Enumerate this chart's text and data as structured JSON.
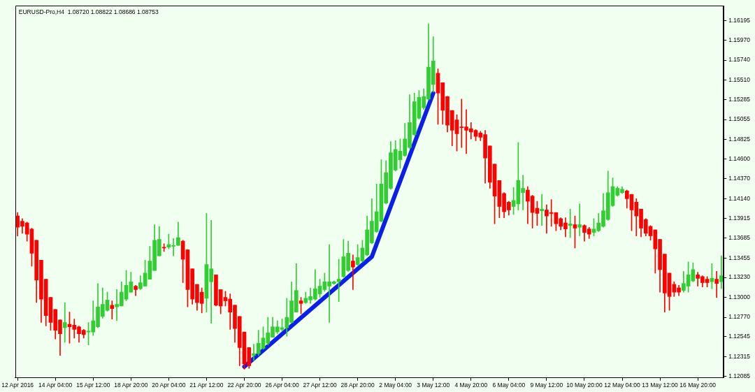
{
  "chart_data": {
    "type": "candlestick",
    "title": "EURUSD-Pro,H4  1.08720 1.08822 1.08686 1.08753",
    "categories": [
      "12 Apr 2016",
      null,
      null,
      null,
      null,
      null,
      null,
      null,
      "14 Apr 04:00",
      null,
      null,
      null,
      null,
      null,
      null,
      null,
      "15 Apr 12:00",
      null,
      null,
      null,
      null,
      null,
      null,
      null,
      "18 Apr 20:00",
      null,
      null,
      null,
      null,
      null,
      null,
      null,
      "20 Apr 04:00",
      null,
      null,
      null,
      null,
      null,
      null,
      null,
      "21 Apr 12:00",
      null,
      null,
      null,
      null,
      null,
      null,
      null,
      "22 Apr 20:00",
      null,
      null,
      null,
      null,
      null,
      null,
      null,
      "26 Apr 04:00",
      null,
      null,
      null,
      null,
      null,
      null,
      null,
      "27 Apr 12:00",
      null,
      null,
      null,
      null,
      null,
      null,
      null,
      "28 Apr 20:00",
      null,
      null,
      null,
      null,
      null,
      null,
      null,
      "2 May 04:00",
      null,
      null,
      null,
      null,
      null,
      null,
      null,
      "3 May 12:00",
      null,
      null,
      null,
      null,
      null,
      null,
      null,
      "4 May 20:00",
      null,
      null,
      null,
      null,
      null,
      null,
      null,
      "6 May 04:00",
      null,
      null,
      null,
      null,
      null,
      null,
      null,
      "9 May 12:00",
      null,
      null,
      null,
      null,
      null,
      null,
      null,
      "10 May 20:00",
      null,
      null,
      null,
      null,
      null,
      null,
      null,
      "12 May 04:00",
      null,
      null,
      null,
      null,
      null,
      null,
      null,
      "13 May 12:00",
      null,
      null,
      null,
      null,
      null,
      null,
      null,
      "16 May 20:00",
      null,
      null,
      null,
      null,
      null
    ],
    "ohlc": [
      [
        1.1394,
        1.1398,
        1.1371,
        1.1381
      ],
      [
        1.1388,
        1.1391,
        1.1374,
        1.1382
      ],
      [
        1.1386,
        1.1387,
        1.1365,
        1.1373
      ],
      [
        1.1379,
        1.138,
        1.1336,
        1.1351
      ],
      [
        1.1366,
        1.1366,
        1.1294,
        1.132
      ],
      [
        1.1343,
        1.1343,
        1.1271,
        1.1298
      ],
      [
        1.1321,
        1.1321,
        1.1267,
        1.1279
      ],
      [
        1.13,
        1.13,
        1.1262,
        1.1271
      ],
      [
        1.1286,
        1.1286,
        1.1252,
        1.1262
      ],
      [
        1.1274,
        1.1274,
        1.1233,
        1.1258
      ],
      [
        1.1265,
        1.1294,
        1.1248,
        1.1271
      ],
      [
        1.1269,
        1.1283,
        1.1247,
        1.1266
      ],
      [
        1.1268,
        1.1275,
        1.1253,
        1.1263
      ],
      [
        1.1266,
        1.1267,
        1.1248,
        1.1258
      ],
      [
        1.1262,
        1.1263,
        1.1253,
        1.1257
      ],
      [
        1.126,
        1.1271,
        1.1245,
        1.1261
      ],
      [
        1.126,
        1.1296,
        1.1256,
        1.1273
      ],
      [
        1.1266,
        1.1316,
        1.1265,
        1.1289
      ],
      [
        1.1278,
        1.1311,
        1.1276,
        1.1292
      ],
      [
        1.1285,
        1.1306,
        1.1284,
        1.1297
      ],
      [
        1.1291,
        1.1296,
        1.1275,
        1.1287
      ],
      [
        1.1289,
        1.1309,
        1.1273,
        1.1292
      ],
      [
        1.129,
        1.1318,
        1.129,
        1.1306
      ],
      [
        1.1298,
        1.1331,
        1.1296,
        1.1314
      ],
      [
        1.1306,
        1.1329,
        1.1306,
        1.1318
      ],
      [
        1.1313,
        1.1314,
        1.1302,
        1.1309
      ],
      [
        1.131,
        1.1325,
        1.1309,
        1.1317
      ],
      [
        1.1313,
        1.1343,
        1.1313,
        1.1328
      ],
      [
        1.1321,
        1.1359,
        1.1321,
        1.1342
      ],
      [
        1.1331,
        1.1384,
        1.1331,
        1.1366
      ],
      [
        1.1348,
        1.1382,
        1.1348,
        1.1367
      ],
      [
        1.1358,
        1.1362,
        1.1353,
        1.1357
      ],
      [
        1.1358,
        1.1373,
        1.1356,
        1.1361
      ],
      [
        1.1359,
        1.1368,
        1.1348,
        1.136
      ],
      [
        1.136,
        1.1387,
        1.136,
        1.1369
      ],
      [
        1.1365,
        1.1366,
        1.1317,
        1.1344
      ],
      [
        1.1355,
        1.1355,
        1.1289,
        1.1309
      ],
      [
        1.1333,
        1.1333,
        1.1292,
        1.1298
      ],
      [
        1.1315,
        1.1315,
        1.1285,
        1.1294
      ],
      [
        1.1306,
        1.1311,
        1.1282,
        1.1293
      ],
      [
        1.1299,
        1.1397,
        1.1283,
        1.1338
      ],
      [
        1.1318,
        1.1389,
        1.127,
        1.1333
      ],
      [
        1.1326,
        1.1326,
        1.129,
        1.1291
      ],
      [
        1.1309,
        1.1309,
        1.1281,
        1.129
      ],
      [
        1.13,
        1.1307,
        1.129,
        1.1296
      ],
      [
        1.1298,
        1.1304,
        1.1263,
        1.1283
      ],
      [
        1.1291,
        1.1291,
        1.1248,
        1.1264
      ],
      [
        1.1278,
        1.1278,
        1.1221,
        1.1242
      ],
      [
        1.126,
        1.126,
        1.1217,
        1.1223
      ],
      [
        1.1242,
        1.1242,
        1.1218,
        1.1221
      ],
      [
        1.1233,
        1.1246,
        1.1227,
        1.1235
      ],
      [
        1.1235,
        1.1262,
        1.1233,
        1.1247
      ],
      [
        1.1241,
        1.1266,
        1.124,
        1.1253
      ],
      [
        1.1247,
        1.1277,
        1.1245,
        1.1259
      ],
      [
        1.1254,
        1.1277,
        1.1254,
        1.1266
      ],
      [
        1.126,
        1.1273,
        1.1258,
        1.1266
      ],
      [
        1.1263,
        1.1275,
        1.1261,
        1.1265
      ],
      [
        1.1265,
        1.1299,
        1.1255,
        1.1277
      ],
      [
        1.1271,
        1.1318,
        1.127,
        1.1296
      ],
      [
        1.1283,
        1.1339,
        1.1283,
        1.1308
      ],
      [
        1.1296,
        1.13,
        1.1281,
        1.1293
      ],
      [
        1.1294,
        1.1306,
        1.1293,
        1.1299
      ],
      [
        1.1297,
        1.1311,
        1.1293,
        1.1301
      ],
      [
        1.1298,
        1.1332,
        1.1297,
        1.131
      ],
      [
        1.1304,
        1.1321,
        1.13,
        1.1313
      ],
      [
        1.1309,
        1.1328,
        1.1307,
        1.1318
      ],
      [
        1.1313,
        1.1361,
        1.1271,
        1.1318
      ],
      [
        1.1316,
        1.1319,
        1.1315,
        1.1318
      ],
      [
        1.1318,
        1.1344,
        1.1295,
        1.1321
      ],
      [
        1.1324,
        1.1367,
        1.1323,
        1.1347
      ],
      [
        1.1331,
        1.1365,
        1.133,
        1.1351
      ],
      [
        1.1342,
        1.1349,
        1.1309,
        1.1335
      ],
      [
        1.1338,
        1.1361,
        1.1337,
        1.1346
      ],
      [
        1.1342,
        1.1366,
        1.1341,
        1.1357
      ],
      [
        1.1349,
        1.1394,
        1.1348,
        1.1378
      ],
      [
        1.1363,
        1.1414,
        1.1362,
        1.1388
      ],
      [
        1.1376,
        1.1431,
        1.1375,
        1.1399
      ],
      [
        1.1388,
        1.1459,
        1.1387,
        1.1431
      ],
      [
        1.1409,
        1.1458,
        1.1408,
        1.1444
      ],
      [
        1.1426,
        1.148,
        1.1425,
        1.1467
      ],
      [
        1.1447,
        1.1481,
        1.1446,
        1.1471
      ],
      [
        1.1459,
        1.1483,
        1.1449,
        1.1469
      ],
      [
        1.1464,
        1.1501,
        1.1463,
        1.1483
      ],
      [
        1.1473,
        1.1534,
        1.1472,
        1.1502
      ],
      [
        1.1488,
        1.1536,
        1.1487,
        1.1526
      ],
      [
        1.1507,
        1.1539,
        1.1506,
        1.1531
      ],
      [
        1.1519,
        1.1541,
        1.1517,
        1.1532
      ],
      [
        1.1529,
        1.1616,
        1.1528,
        1.1566
      ],
      [
        1.1546,
        1.1601,
        1.1537,
        1.1573
      ],
      [
        1.1559,
        1.1564,
        1.15,
        1.1536
      ],
      [
        1.1548,
        1.1548,
        1.15,
        1.1516
      ],
      [
        1.1532,
        1.1532,
        1.1491,
        1.1499
      ],
      [
        1.1516,
        1.1516,
        1.1475,
        1.1493
      ],
      [
        1.1505,
        1.1511,
        1.1469,
        1.1489
      ],
      [
        1.1497,
        1.1529,
        1.1473,
        1.1496
      ],
      [
        1.1497,
        1.1517,
        1.1466,
        1.1493
      ],
      [
        1.1495,
        1.1502,
        1.1483,
        1.1491
      ],
      [
        1.1493,
        1.1494,
        1.1481,
        1.1486
      ],
      [
        1.149,
        1.1492,
        1.1481,
        1.1485
      ],
      [
        1.1488,
        1.1493,
        1.1432,
        1.1461
      ],
      [
        1.1475,
        1.1475,
        1.1426,
        1.1433
      ],
      [
        1.1454,
        1.1454,
        1.1385,
        1.1417
      ],
      [
        1.1435,
        1.1435,
        1.1392,
        1.1405
      ],
      [
        1.142,
        1.1421,
        1.1392,
        1.1399
      ],
      [
        1.141,
        1.1411,
        1.1395,
        1.1401
      ],
      [
        1.1405,
        1.1427,
        1.1396,
        1.1412
      ],
      [
        1.1408,
        1.1479,
        1.1401,
        1.1435
      ],
      [
        1.1421,
        1.1441,
        1.1401,
        1.1426
      ],
      [
        1.1424,
        1.1428,
        1.1385,
        1.1411
      ],
      [
        1.1417,
        1.1418,
        1.138,
        1.1398
      ],
      [
        1.1403,
        1.1411,
        1.1383,
        1.1397
      ],
      [
        1.14,
        1.1419,
        1.1383,
        1.1402
      ],
      [
        1.1401,
        1.1407,
        1.1374,
        1.1394
      ],
      [
        1.1398,
        1.1413,
        1.1382,
        1.1397
      ],
      [
        1.1398,
        1.1398,
        1.1377,
        1.1385
      ],
      [
        1.1391,
        1.1392,
        1.1378,
        1.1382
      ],
      [
        1.1386,
        1.1392,
        1.137,
        1.1379
      ],
      [
        1.1383,
        1.1402,
        1.1369,
        1.1385
      ],
      [
        1.1384,
        1.1394,
        1.1357,
        1.138
      ],
      [
        1.1381,
        1.1408,
        1.1371,
        1.1384
      ],
      [
        1.1383,
        1.1384,
        1.1365,
        1.1375
      ],
      [
        1.1379,
        1.1381,
        1.1368,
        1.1373
      ],
      [
        1.1375,
        1.1391,
        1.1371,
        1.1379
      ],
      [
        1.1377,
        1.1397,
        1.1376,
        1.1386
      ],
      [
        1.1382,
        1.142,
        1.1381,
        1.14
      ],
      [
        1.139,
        1.1446,
        1.1389,
        1.1421
      ],
      [
        1.1406,
        1.1438,
        1.1405,
        1.1428
      ],
      [
        1.1418,
        1.1428,
        1.1417,
        1.1426
      ],
      [
        1.1421,
        1.1428,
        1.142,
        1.1425
      ],
      [
        1.1423,
        1.1424,
        1.1403,
        1.1414
      ],
      [
        1.1419,
        1.1419,
        1.1377,
        1.1401
      ],
      [
        1.141,
        1.1414,
        1.1371,
        1.1394
      ],
      [
        1.1402,
        1.1402,
        1.137,
        1.138
      ],
      [
        1.139,
        1.1391,
        1.1371,
        1.1374
      ],
      [
        1.1382,
        1.1383,
        1.1366,
        1.1371
      ],
      [
        1.1378,
        1.1378,
        1.1328,
        1.1356
      ],
      [
        1.1367,
        1.1367,
        1.1306,
        1.1332
      ],
      [
        1.135,
        1.135,
        1.1283,
        1.1305
      ],
      [
        1.1328,
        1.1328,
        1.1285,
        1.1301
      ],
      [
        1.1315,
        1.1318,
        1.1301,
        1.1306
      ],
      [
        1.1311,
        1.1314,
        1.1302,
        1.1306
      ],
      [
        1.1308,
        1.133,
        1.1306,
        1.1316
      ],
      [
        1.1313,
        1.1341,
        1.1306,
        1.1326
      ],
      [
        1.1319,
        1.134,
        1.1318,
        1.1332
      ],
      [
        1.1326,
        1.1329,
        1.1313,
        1.1322
      ],
      [
        1.1324,
        1.1325,
        1.1312,
        1.1317
      ],
      [
        1.1321,
        1.1324,
        1.1312,
        1.1317
      ],
      [
        1.1318,
        1.1339,
        1.131,
        1.1322
      ],
      [
        1.1321,
        1.133,
        1.13,
        1.1316
      ],
      [
        1.1318,
        1.1348,
        1.131,
        1.1325
      ]
    ],
    "colors": [
      "#ff0000",
      "#ff0000",
      "#ff0000",
      "#ff0000",
      "#ff0000",
      "#ff0000",
      "#ff0000",
      "#ff0000",
      "#ff0000",
      "#ff0000",
      "#32cd32",
      "#ff0000",
      "#ff0000",
      "#ff0000",
      "#ff0000",
      "#32cd32",
      "#32cd32",
      "#32cd32",
      "#32cd32",
      "#32cd32",
      "#ff0000",
      "#32cd32",
      "#32cd32",
      "#32cd32",
      "#32cd32",
      "#ff0000",
      "#32cd32",
      "#32cd32",
      "#32cd32",
      "#32cd32",
      "#32cd32",
      "#ff0000",
      "#32cd32",
      "#32cd32",
      "#32cd32",
      "#ff0000",
      "#ff0000",
      "#ff0000",
      "#ff0000",
      "#ff0000",
      "#32cd32",
      "#32cd32",
      "#ff0000",
      "#ff0000",
      "#ff0000",
      "#ff0000",
      "#ff0000",
      "#ff0000",
      "#ff0000",
      "#ff0000",
      "#32cd32",
      "#32cd32",
      "#32cd32",
      "#32cd32",
      "#32cd32",
      "#32cd32",
      "#32cd32",
      "#32cd32",
      "#32cd32",
      "#32cd32",
      "#ff0000",
      "#32cd32",
      "#32cd32",
      "#32cd32",
      "#32cd32",
      "#32cd32",
      "#32cd32",
      "#32cd32",
      "#32cd32",
      "#32cd32",
      "#32cd32",
      "#ff0000",
      "#32cd32",
      "#32cd32",
      "#32cd32",
      "#32cd32",
      "#32cd32",
      "#32cd32",
      "#32cd32",
      "#32cd32",
      "#32cd32",
      "#32cd32",
      "#32cd32",
      "#32cd32",
      "#32cd32",
      "#32cd32",
      "#32cd32",
      "#32cd32",
      "#32cd32",
      "#ff0000",
      "#ff0000",
      "#ff0000",
      "#ff0000",
      "#ff0000",
      "#ff0000",
      "#ff0000",
      "#ff0000",
      "#ff0000",
      "#ff0000",
      "#ff0000",
      "#ff0000",
      "#ff0000",
      "#ff0000",
      "#ff0000",
      "#ff0000",
      "#32cd32",
      "#32cd32",
      "#32cd32",
      "#ff0000",
      "#ff0000",
      "#ff0000",
      "#32cd32",
      "#ff0000",
      "#ff0000",
      "#ff0000",
      "#ff0000",
      "#ff0000",
      "#32cd32",
      "#ff0000",
      "#32cd32",
      "#ff0000",
      "#ff0000",
      "#32cd32",
      "#32cd32",
      "#32cd32",
      "#32cd32",
      "#32cd32",
      "#32cd32",
      "#32cd32",
      "#ff0000",
      "#ff0000",
      "#ff0000",
      "#ff0000",
      "#ff0000",
      "#ff0000",
      "#ff0000",
      "#ff0000",
      "#ff0000",
      "#ff0000",
      "#ff0000",
      "#ff0000",
      "#32cd32",
      "#32cd32",
      "#32cd32",
      "#ff0000",
      "#ff0000",
      "#ff0000",
      "#32cd32",
      "#ff0000",
      "#32cd32"
    ],
    "ylim": [
      1.1207,
      1.1637
    ],
    "yticks": [
      1.16195,
      {
        "value": 1.1597,
        "label": "1.15970"
      },
      {
        "value": 1.1574,
        "label": "1.15740"
      },
      {
        "value": 1.1551,
        "label": "1.15510"
      },
      1.15285,
      1.15055,
      1.14825,
      {
        "value": 1.146,
        "label": "1.14600"
      },
      {
        "value": 1.1437,
        "label": "1.14370"
      },
      {
        "value": 1.1414,
        "label": "1.14140"
      },
      1.13915,
      1.13685,
      1.13455,
      {
        "value": 1.1323,
        "label": "1.13230"
      },
      {
        "value": 1.13,
        "label": "1.13000"
      },
      {
        "value": 1.1277,
        "label": "1.12770"
      },
      1.12545,
      1.12315,
      1.12085
    ],
    "series": [
      {
        "type": "line",
        "color": "#0b1fe6",
        "values": [
          null,
          null,
          null,
          null,
          null,
          null,
          null,
          null,
          null,
          null,
          null,
          null,
          null,
          null,
          null,
          null,
          null,
          null,
          null,
          null,
          null,
          null,
          null,
          null,
          null,
          null,
          null,
          null,
          null,
          null,
          null,
          null,
          null,
          null,
          null,
          null,
          null,
          null,
          null,
          null,
          null,
          null,
          null,
          null,
          null,
          null,
          null,
          null,
          1.122,
          null,
          null,
          null,
          null,
          null,
          null,
          null,
          null,
          null,
          null,
          null,
          null,
          null,
          null,
          null,
          null,
          null,
          null,
          null,
          null,
          null,
          null,
          null,
          null,
          null,
          null,
          1.1347,
          null,
          null,
          null,
          null,
          null,
          null,
          null,
          null,
          null,
          null,
          null,
          null,
          1.1536,
          null,
          null,
          null,
          null,
          null,
          null,
          null,
          null,
          null,
          null,
          null,
          null,
          null,
          null,
          null,
          null,
          null,
          null,
          null,
          null,
          null,
          null,
          null,
          null,
          null,
          null,
          null,
          null,
          null,
          null,
          null,
          null,
          null,
          null,
          null,
          null,
          null,
          null,
          null,
          null,
          null,
          null,
          null,
          null,
          null,
          null,
          null,
          null,
          null,
          null,
          null,
          null,
          null,
          null,
          null,
          null,
          null,
          null,
          null,
          null,
          null
        ]
      }
    ]
  }
}
